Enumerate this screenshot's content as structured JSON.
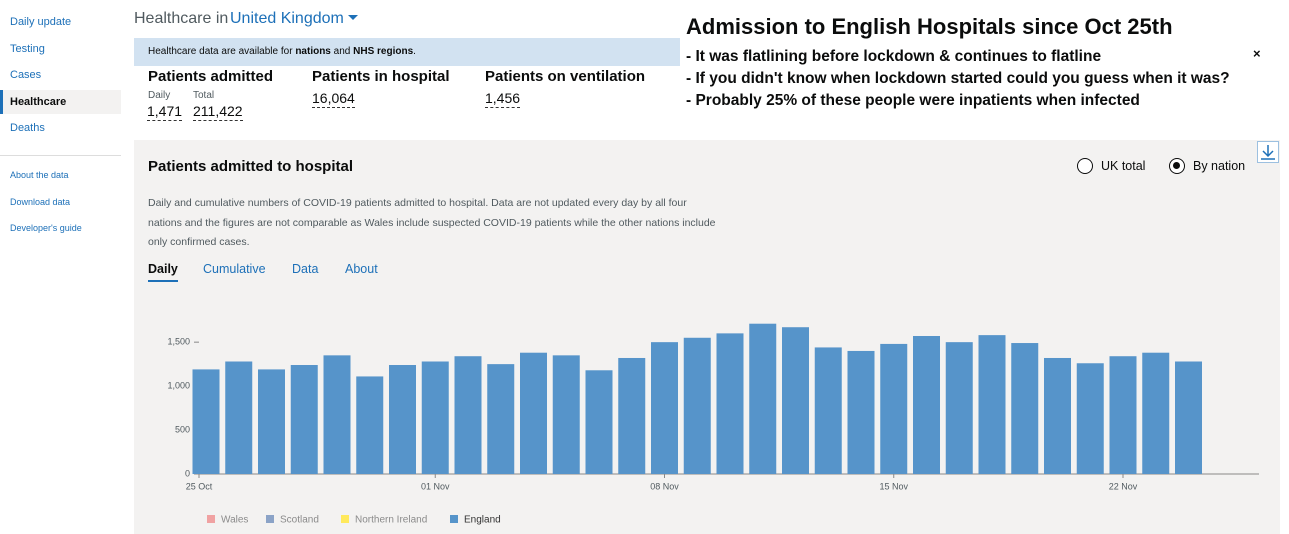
{
  "sidebar": {
    "main": [
      "Daily update",
      "Testing",
      "Cases",
      "Healthcare",
      "Deaths"
    ],
    "active": 3,
    "secondary": [
      "About the data",
      "Download data",
      "Developer's guide"
    ]
  },
  "header": {
    "prefix": "Healthcare in",
    "area": "United Kingdom"
  },
  "banner": {
    "parts": [
      "Healthcare data are available for ",
      "nations",
      " and ",
      "NHS regions",
      "."
    ],
    "close": "×"
  },
  "annotation": {
    "title": "Admission to English Hospitals since Oct 25th",
    "lines": [
      "- It was flatlining before lockdown & continues to flatline",
      "- If you didn't know when lockdown started could you guess when it was?",
      "-  Probably 25% of these people were inpatients when infected"
    ]
  },
  "summary": [
    {
      "title": "Patients admitted",
      "items": [
        {
          "label": "Daily",
          "value": "1,471"
        },
        {
          "label": "Total",
          "value": "211,422"
        }
      ]
    },
    {
      "title": "Patients in hospital",
      "items": [
        {
          "value": "16,064"
        }
      ]
    },
    {
      "title": "Patients on ventilation",
      "items": [
        {
          "value": "1,456"
        }
      ]
    }
  ],
  "card": {
    "title": "Patients admitted to hospital",
    "options": [
      "UK total",
      "By nation"
    ],
    "selected": 1,
    "description": [
      "Daily and cumulative numbers of COVID-19 patients admitted to hospital. Data are not updated every day by all four",
      "nations and the figures are not comparable as Wales include suspected COVID-19 patients while the other nations include",
      "only confirmed cases."
    ],
    "tabs": [
      "Daily",
      "Cumulative",
      "Data",
      "About"
    ],
    "active_tab": 0
  },
  "chart_data": {
    "type": "bar",
    "categories": [
      "25 Oct",
      null,
      null,
      null,
      null,
      null,
      null,
      "01 Nov",
      null,
      null,
      null,
      null,
      null,
      null,
      "08 Nov",
      null,
      null,
      null,
      null,
      null,
      null,
      "15 Nov",
      null,
      null,
      null,
      null,
      null,
      null,
      "22 Nov",
      null,
      null
    ],
    "series": [
      {
        "name": "Wales",
        "color": "#f0a2a2",
        "values": [
          null,
          null,
          null,
          null,
          null,
          null,
          null,
          null,
          null,
          null,
          null,
          null,
          null,
          null,
          null,
          null,
          null,
          null,
          null,
          null,
          null,
          null,
          null,
          null,
          null,
          null,
          null,
          null,
          null,
          null,
          null
        ]
      },
      {
        "name": "Scotland",
        "color": "#8ba3c7",
        "values": [
          null,
          null,
          null,
          null,
          null,
          null,
          null,
          null,
          null,
          null,
          null,
          null,
          null,
          null,
          null,
          null,
          null,
          null,
          null,
          null,
          null,
          null,
          null,
          null,
          null,
          null,
          null,
          null,
          null,
          null,
          null
        ]
      },
      {
        "name": "Northern Ireland",
        "color": "#ffe95c",
        "values": [
          null,
          null,
          null,
          null,
          null,
          null,
          null,
          null,
          null,
          null,
          null,
          null,
          null,
          null,
          null,
          null,
          null,
          null,
          null,
          null,
          null,
          null,
          null,
          null,
          null,
          null,
          null,
          null,
          null,
          null,
          null
        ]
      },
      {
        "name": "England",
        "color": "#5694ca",
        "values": [
          1190,
          1280,
          1190,
          1240,
          1350,
          1110,
          1240,
          1280,
          1340,
          1250,
          1380,
          1350,
          1180,
          1320,
          1500,
          1550,
          1600,
          1710,
          1670,
          1440,
          1400,
          1480,
          1570,
          1500,
          1580,
          1490,
          1320,
          1260,
          1340,
          1380,
          1280
        ]
      }
    ],
    "ylim": [
      0,
      1900
    ],
    "yticks": [
      0,
      500,
      {
        "value": 1000,
        "label": "1,000"
      },
      {
        "value": 1500,
        "label": "1,500"
      }
    ],
    "grid": false
  }
}
